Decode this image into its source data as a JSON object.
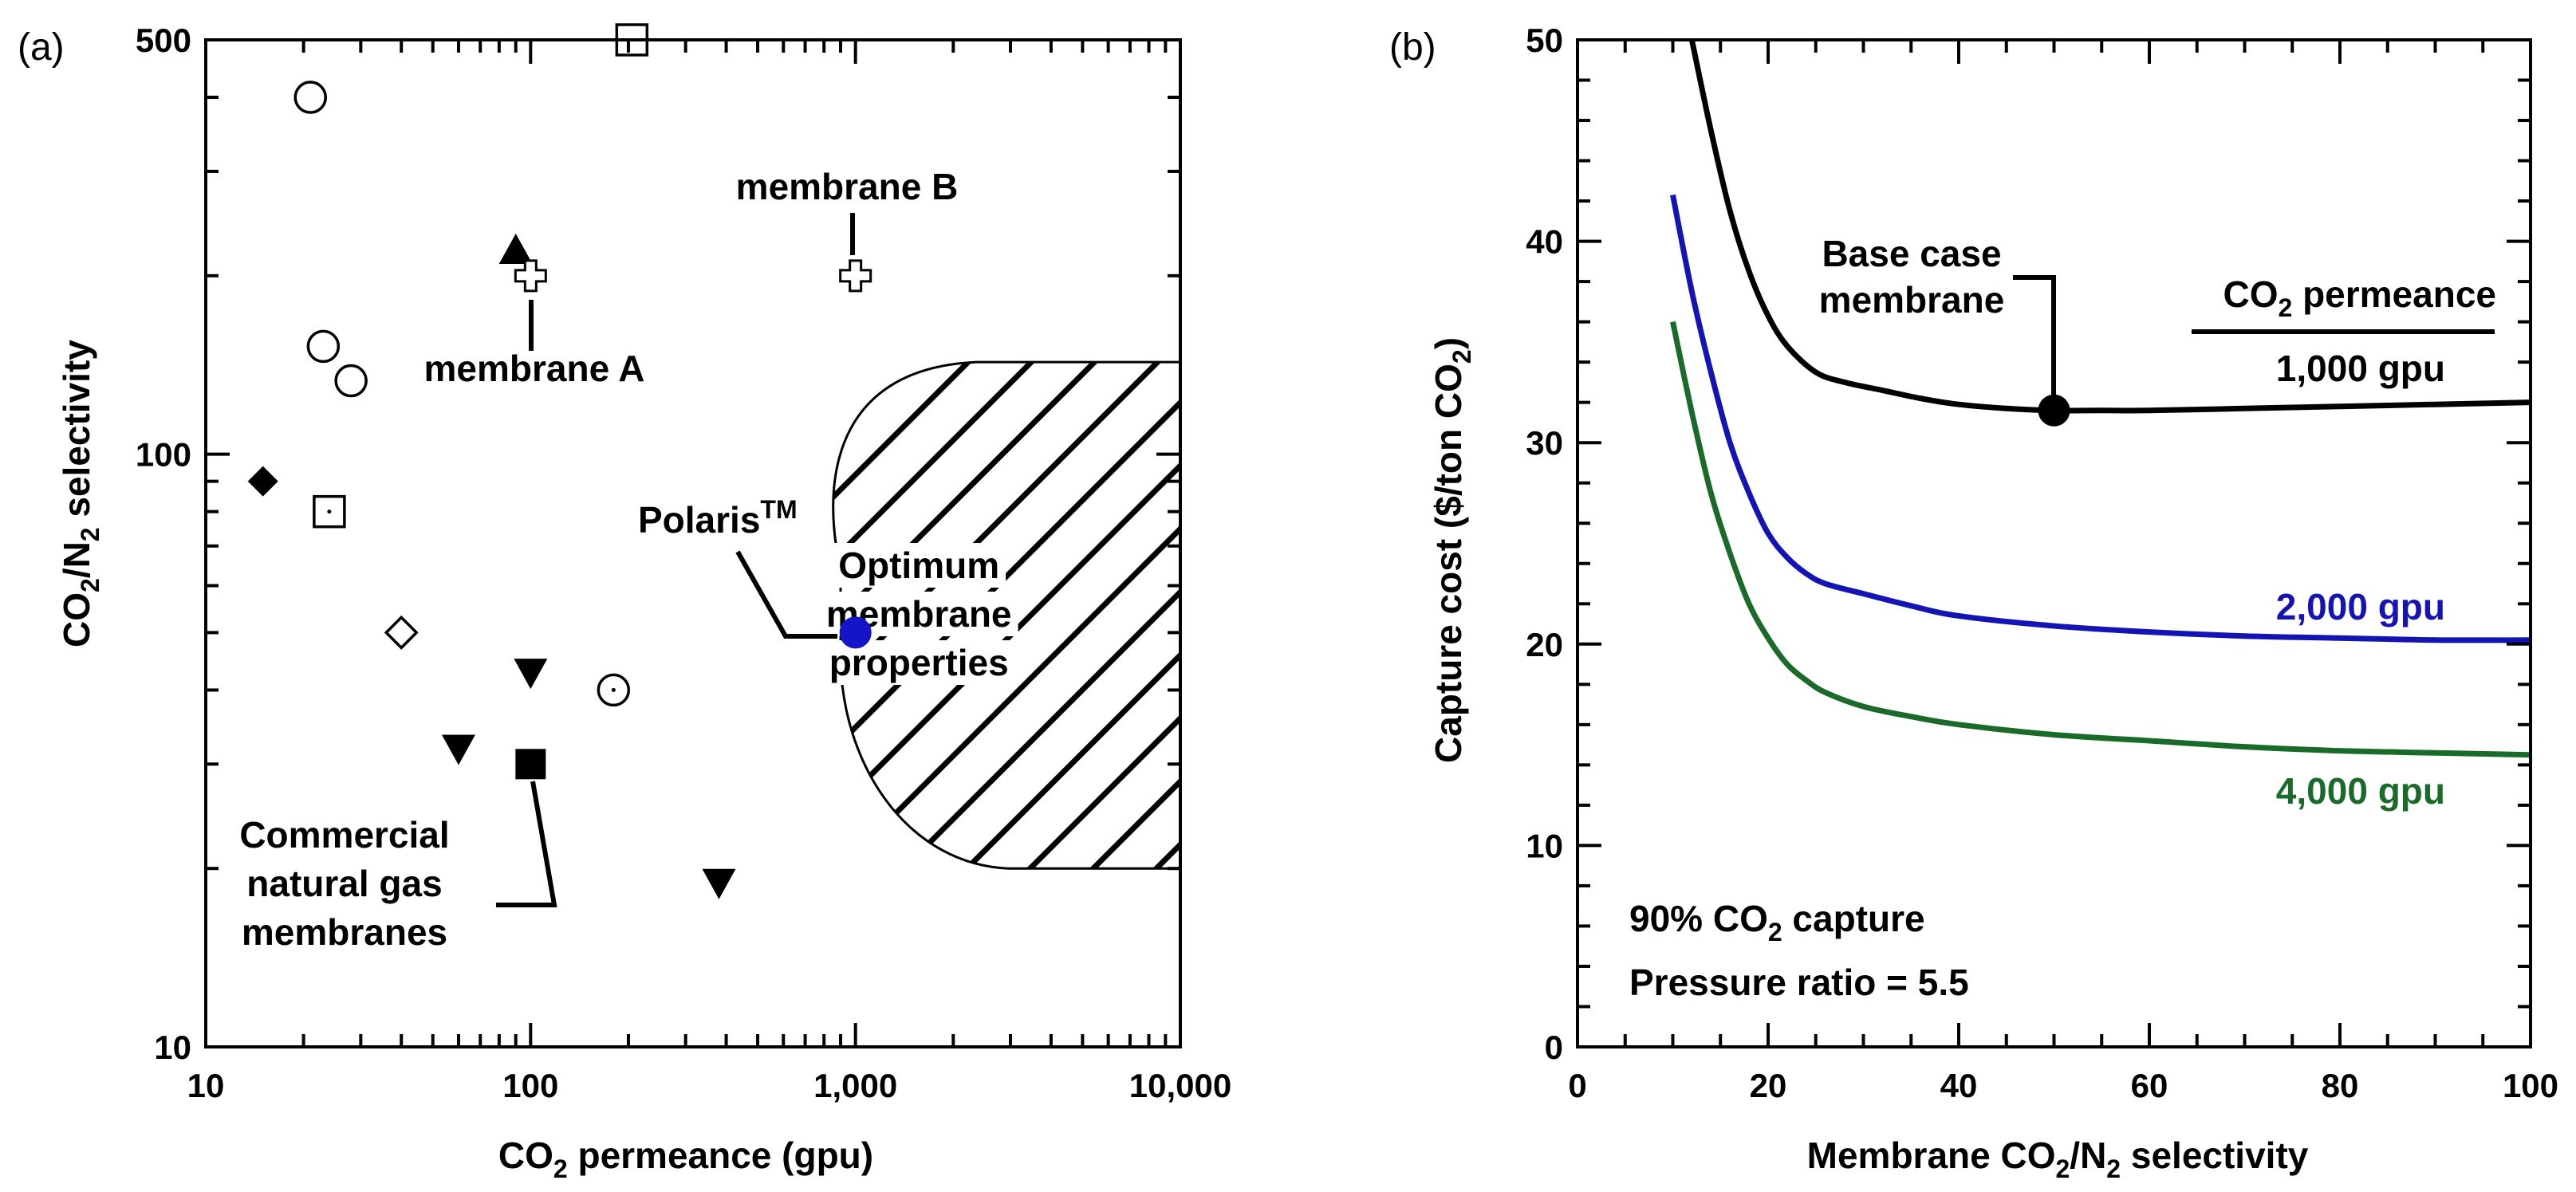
{
  "chart_data": [
    {
      "type": "scatter",
      "panel_label": "(a)",
      "xlabel": {
        "pre": "CO",
        "sub": "2",
        "post": " permeance (gpu)"
      },
      "ylabel": {
        "pre": "CO",
        "sub1": "2",
        "mid": "/N",
        "sub2": "2",
        "post": " selectivity"
      },
      "xscale": "log",
      "yscale": "log",
      "xlim": [
        10,
        10000
      ],
      "ylim": [
        10,
        500
      ],
      "xticks": [
        {
          "value": 10,
          "label": "10"
        },
        {
          "value": 100,
          "label": "100"
        },
        {
          "value": 1000,
          "label": "1,000"
        },
        {
          "value": 10000,
          "label": "10,000"
        }
      ],
      "yticks": [
        {
          "value": 10,
          "label": "10"
        },
        {
          "value": 100,
          "label": "100"
        },
        {
          "value": 500,
          "label": "500"
        }
      ],
      "points": [
        {
          "x": 21,
          "y": 400,
          "marker": "circle-open"
        },
        {
          "x": 23,
          "y": 152,
          "marker": "circle-open"
        },
        {
          "x": 28,
          "y": 133,
          "marker": "circle-open"
        },
        {
          "x": 180,
          "y": 40,
          "marker": "circle-dot"
        },
        {
          "x": 205,
          "y": 500,
          "marker": "square-open"
        },
        {
          "x": 24,
          "y": 80,
          "marker": "square-dot"
        },
        {
          "x": 100,
          "y": 30,
          "marker": "square-filled"
        },
        {
          "x": 90,
          "y": 220,
          "marker": "triangle-up-filled"
        },
        {
          "x": 100,
          "y": 43,
          "marker": "triangle-down-filled"
        },
        {
          "x": 60,
          "y": 32,
          "marker": "triangle-down-filled"
        },
        {
          "x": 380,
          "y": 19,
          "marker": "triangle-down-filled"
        },
        {
          "x": 15,
          "y": 90,
          "marker": "diamond-filled"
        },
        {
          "x": 40,
          "y": 50,
          "marker": "diamond-open"
        },
        {
          "x": 100,
          "y": 200,
          "marker": "cross-open"
        },
        {
          "x": 1000,
          "y": 200,
          "marker": "cross-open"
        },
        {
          "x": 1000,
          "y": 50,
          "marker": "circle-filled-blue"
        }
      ],
      "optimum_region": {
        "x_min": 900,
        "x_max": 10000,
        "y_min": 20,
        "y_max": 143,
        "label_lines": [
          "Optimum",
          "membrane",
          "properties"
        ]
      },
      "annotations": {
        "membrane_a": "membrane A",
        "membrane_b": "membrane B",
        "polaris_main": "Polaris",
        "polaris_sup": "TM",
        "commercial_lines": [
          "Commercial",
          "natural gas",
          "membranes"
        ]
      }
    },
    {
      "type": "line",
      "panel_label": "(b)",
      "xlabel": {
        "pre": "Membrane CO",
        "sub1": "2",
        "mid": "/N",
        "sub2": "2",
        "post": " selectivity"
      },
      "ylabel": {
        "pre": "Capture cost ($/ton CO",
        "sub": "2",
        "post": ")"
      },
      "xlim": [
        0,
        100
      ],
      "ylim": [
        0,
        50
      ],
      "xticks": [
        0,
        20,
        40,
        60,
        80,
        100
      ],
      "yticks": [
        0,
        10,
        20,
        30,
        40,
        50
      ],
      "series": [
        {
          "name": "1,000 gpu",
          "color": "#000000",
          "x": [
            12,
            14,
            16,
            18,
            20,
            22,
            25,
            28,
            32,
            36,
            40,
            45,
            50,
            55,
            60,
            70,
            80,
            90,
            100
          ],
          "y": [
            50,
            45.5,
            41.5,
            38.5,
            36.3,
            34.8,
            33.5,
            33.0,
            32.6,
            32.2,
            31.9,
            31.7,
            31.6,
            31.6,
            31.6,
            31.7,
            31.8,
            31.9,
            32.0
          ]
        },
        {
          "name": "2,000 gpu",
          "color": "#1414b4",
          "x": [
            10,
            12,
            14,
            16,
            18,
            20,
            22,
            24,
            26,
            30,
            35,
            40,
            50,
            60,
            70,
            80,
            90,
            100
          ],
          "y": [
            42.3,
            37.5,
            33.5,
            30.0,
            27.5,
            25.5,
            24.3,
            23.5,
            23.0,
            22.5,
            21.9,
            21.4,
            20.9,
            20.6,
            20.4,
            20.3,
            20.2,
            20.2
          ]
        },
        {
          "name": "4,000 gpu",
          "color": "#1a6b2a",
          "x": [
            10,
            12,
            14,
            16,
            18,
            20,
            22,
            24,
            26,
            30,
            35,
            40,
            50,
            60,
            70,
            80,
            90,
            100
          ],
          "y": [
            36.0,
            31.5,
            27.5,
            24.5,
            22.0,
            20.3,
            19.0,
            18.2,
            17.6,
            16.9,
            16.4,
            16.0,
            15.5,
            15.2,
            14.9,
            14.7,
            14.6,
            14.5
          ]
        }
      ],
      "base_case_point": {
        "x": 50,
        "y": 31.6
      },
      "legend": {
        "title_pre": "CO",
        "title_sub": "2",
        "title_post": " permeance",
        "labels": [
          "1,000 gpu",
          "2,000 gpu",
          "4,000 gpu"
        ]
      },
      "annotations": {
        "base_case_lines": [
          "Base case",
          "membrane"
        ],
        "capture_pre": "90% CO",
        "capture_sub": "2",
        "capture_post": " capture",
        "pressure_ratio": "Pressure ratio = 5.5"
      }
    }
  ]
}
